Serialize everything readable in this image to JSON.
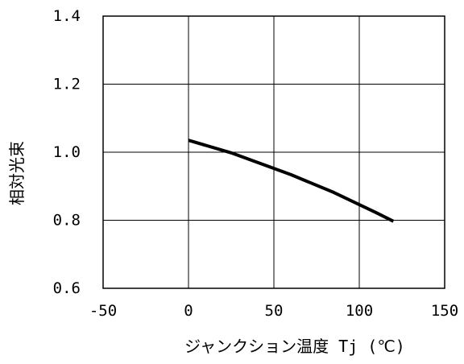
{
  "chart_data": {
    "type": "line",
    "title": "",
    "xlabel": "ジャンクション温度 Tj (℃)",
    "ylabel": "相対光束",
    "xlim": [
      -50,
      150
    ],
    "ylim": [
      0.6,
      1.4
    ],
    "x_ticks": [
      -50,
      0,
      50,
      100,
      150
    ],
    "y_ticks": [
      0.6,
      0.8,
      1.0,
      1.2,
      1.4
    ],
    "x_tick_labels": [
      "-50",
      "0",
      "50",
      "100",
      "150"
    ],
    "y_tick_labels": [
      "0.6",
      "0.8",
      "1.0",
      "1.2",
      "1.4"
    ],
    "grid": true,
    "legend": "none",
    "series": [
      {
        "x": [
          0,
          25,
          60,
          85,
          110,
          120
        ],
        "y": [
          1.035,
          0.998,
          0.934,
          0.882,
          0.822,
          0.797
        ]
      }
    ],
    "colors": {
      "line": "#000000",
      "grid": "#000000",
      "axis": "#000000"
    }
  }
}
